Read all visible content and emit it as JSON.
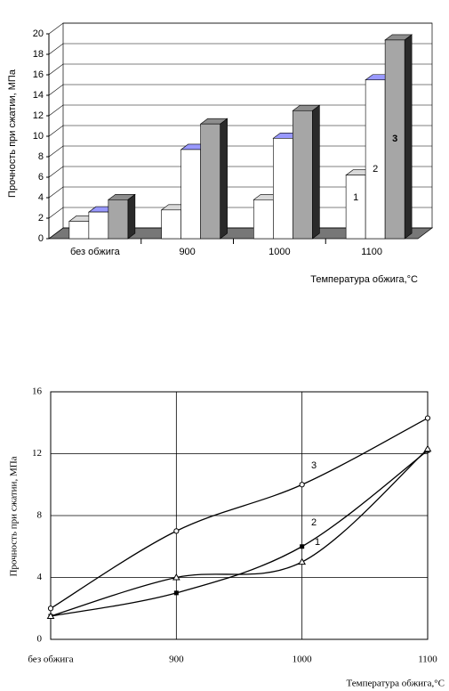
{
  "chart_data": [
    {
      "type": "bar3d",
      "categories": [
        "без обжига",
        "900",
        "1000",
        "1100"
      ],
      "series": [
        {
          "name": "1",
          "color": "#ffffff",
          "values": [
            1.7,
            2.8,
            3.8,
            6.2
          ]
        },
        {
          "name": "2",
          "color": "#ffffff",
          "values": [
            2.6,
            8.7,
            9.8,
            15.5
          ]
        },
        {
          "name": "3",
          "color": "#a6a6a6",
          "values": [
            3.8,
            11.2,
            12.5,
            19.4
          ]
        }
      ],
      "ylim": [
        0,
        20
      ],
      "yticks": [
        0,
        2,
        4,
        6,
        8,
        10,
        12,
        14,
        16,
        18,
        20
      ],
      "grid": true,
      "ylabel": "Прочность при сжатии, МПа",
      "xlabel": "Температура обжига,°С"
    },
    {
      "type": "line",
      "categories": [
        "без обжига",
        "900",
        "1000",
        "1100"
      ],
      "series": [
        {
          "name": "3",
          "color": "#000000",
          "marker": "circle",
          "values": [
            2.0,
            7.0,
            10.0,
            14.3
          ]
        },
        {
          "name": "2",
          "color": "#000000",
          "marker": "square",
          "values": [
            1.5,
            3.0,
            6.0,
            12.2
          ]
        },
        {
          "name": "1",
          "color": "#000000",
          "marker": "triangle",
          "values": [
            1.5,
            4.0,
            5.0,
            12.3
          ]
        }
      ],
      "ylim": [
        0,
        16
      ],
      "yticks": [
        0,
        4,
        8,
        12,
        16
      ],
      "grid": true,
      "ylabel": "Прочность при сжатии, МПа",
      "xlabel": "Температура обжига,°С"
    }
  ]
}
